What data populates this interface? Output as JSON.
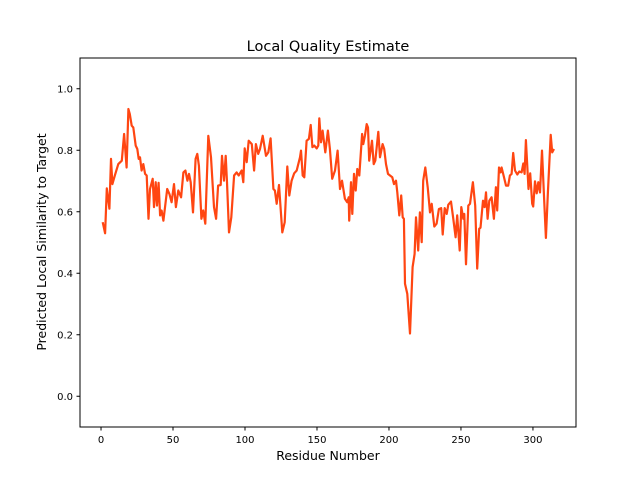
{
  "chart_data": {
    "type": "line",
    "title": "Local Quality Estimate",
    "xlabel": "Residue Number",
    "ylabel": "Predicted Local Similarity to Target",
    "xlim": [
      -14.6,
      329.9
    ],
    "ylim": [
      -0.1,
      1.1
    ],
    "xticks": [
      0,
      50,
      100,
      150,
      200,
      250,
      300
    ],
    "xtick_labels": [
      "0",
      "50",
      "100",
      "150",
      "200",
      "250",
      "300"
    ],
    "yticks": [
      0.0,
      0.2,
      0.4,
      0.6,
      0.8,
      1.0
    ],
    "ytick_labels": [
      "0.0",
      "0.2",
      "0.4",
      "0.6",
      "0.8",
      "1.0"
    ],
    "grid": false,
    "series": [
      {
        "name": "local quality",
        "color": "#ff4612",
        "points": [
          [
            1.2,
            0.566
          ],
          [
            2.8,
            0.53
          ],
          [
            4,
            0.676
          ],
          [
            5.8,
            0.61
          ],
          [
            6.9,
            0.772
          ],
          [
            7.9,
            0.69
          ],
          [
            9.7,
            0.72
          ],
          [
            12,
            0.755
          ],
          [
            14.4,
            0.766
          ],
          [
            16,
            0.853
          ],
          [
            17.8,
            0.744
          ],
          [
            19,
            0.934
          ],
          [
            20,
            0.918
          ],
          [
            21.3,
            0.88
          ],
          [
            22.4,
            0.874
          ],
          [
            24.1,
            0.815
          ],
          [
            25.2,
            0.804
          ],
          [
            26.2,
            0.772
          ],
          [
            27.1,
            0.777
          ],
          [
            28.2,
            0.734
          ],
          [
            29.4,
            0.755
          ],
          [
            30.6,
            0.723
          ],
          [
            31.7,
            0.718
          ],
          [
            33,
            0.577
          ],
          [
            34,
            0.674
          ],
          [
            35.9,
            0.707
          ],
          [
            36.8,
            0.615
          ],
          [
            38,
            0.696
          ],
          [
            38.9,
            0.62
          ],
          [
            40,
            0.694
          ],
          [
            41,
            0.588
          ],
          [
            42.1,
            0.604
          ],
          [
            43.3,
            0.571
          ],
          [
            46,
            0.674
          ],
          [
            47.5,
            0.658
          ],
          [
            49,
            0.631
          ],
          [
            50.7,
            0.69
          ],
          [
            52,
            0.615
          ],
          [
            53.7,
            0.669
          ],
          [
            55.6,
            0.647
          ],
          [
            57.2,
            0.728
          ],
          [
            58.6,
            0.734
          ],
          [
            60,
            0.701
          ],
          [
            61.1,
            0.723
          ],
          [
            62.3,
            0.696
          ],
          [
            63.9,
            0.598
          ],
          [
            65.7,
            0.772
          ],
          [
            66.9,
            0.788
          ],
          [
            68,
            0.75
          ],
          [
            69.7,
            0.577
          ],
          [
            71,
            0.604
          ],
          [
            72.4,
            0.561
          ],
          [
            74.5,
            0.847
          ],
          [
            76.4,
            0.777
          ],
          [
            78.5,
            0.615
          ],
          [
            79.9,
            0.577
          ],
          [
            81.3,
            0.685
          ],
          [
            83.1,
            0.687
          ],
          [
            84,
            0.782
          ],
          [
            85.4,
            0.701
          ],
          [
            86.6,
            0.782
          ],
          [
            87.5,
            0.696
          ],
          [
            88.9,
            0.533
          ],
          [
            90.5,
            0.582
          ],
          [
            92.4,
            0.718
          ],
          [
            94.2,
            0.728
          ],
          [
            95.6,
            0.718
          ],
          [
            97.7,
            0.734
          ],
          [
            98.8,
            0.696
          ],
          [
            99.8,
            0.806
          ],
          [
            101.2,
            0.761
          ],
          [
            102.6,
            0.831
          ],
          [
            104.7,
            0.82
          ],
          [
            106.3,
            0.734
          ],
          [
            107.6,
            0.82
          ],
          [
            109.2,
            0.788
          ],
          [
            110.4,
            0.804
          ],
          [
            112.3,
            0.847
          ],
          [
            114.6,
            0.782
          ],
          [
            116.2,
            0.793
          ],
          [
            117.8,
            0.839
          ],
          [
            119.7,
            0.674
          ],
          [
            120.8,
            0.669
          ],
          [
            122,
            0.626
          ],
          [
            123.6,
            0.687
          ],
          [
            125.9,
            0.533
          ],
          [
            127.6,
            0.566
          ],
          [
            129.4,
            0.747
          ],
          [
            130.8,
            0.653
          ],
          [
            132.4,
            0.701
          ],
          [
            134.2,
            0.725
          ],
          [
            135.9,
            0.734
          ],
          [
            138.2,
            0.777
          ],
          [
            138.9,
            0.799
          ],
          [
            140.1,
            0.718
          ],
          [
            141.2,
            0.712
          ],
          [
            142.8,
            0.831
          ],
          [
            144.4,
            0.837
          ],
          [
            145.6,
            0.882
          ],
          [
            146.8,
            0.81
          ],
          [
            148.1,
            0.815
          ],
          [
            149.8,
            0.806
          ],
          [
            150.9,
            0.815
          ],
          [
            151.6,
            0.904
          ],
          [
            152.8,
            0.826
          ],
          [
            153.9,
            0.864
          ],
          [
            155.8,
            0.793
          ],
          [
            157.6,
            0.864
          ],
          [
            159,
            0.804
          ],
          [
            160.6,
            0.707
          ],
          [
            162.5,
            0.734
          ],
          [
            164.3,
            0.799
          ],
          [
            166,
            0.674
          ],
          [
            167.4,
            0.701
          ],
          [
            169.4,
            0.642
          ],
          [
            171,
            0.631
          ],
          [
            172,
            0.647
          ],
          [
            172.4,
            0.571
          ],
          [
            173.6,
            0.696
          ],
          [
            174.5,
            0.593
          ],
          [
            175.7,
            0.723
          ],
          [
            176.9,
            0.669
          ],
          [
            178,
            0.739
          ],
          [
            179.4,
            0.718
          ],
          [
            181.3,
            0.853
          ],
          [
            182.2,
            0.82
          ],
          [
            183.3,
            0.847
          ],
          [
            184.5,
            0.885
          ],
          [
            185.4,
            0.874
          ],
          [
            186.3,
            0.766
          ],
          [
            188.2,
            0.831
          ],
          [
            189.4,
            0.755
          ],
          [
            190.5,
            0.766
          ],
          [
            192.6,
            0.86
          ],
          [
            193.8,
            0.777
          ],
          [
            195.6,
            0.82
          ],
          [
            196.7,
            0.804
          ],
          [
            197.9,
            0.755
          ],
          [
            199.3,
            0.723
          ],
          [
            200.7,
            0.718
          ],
          [
            202.3,
            0.712
          ],
          [
            203.5,
            0.69
          ],
          [
            204.9,
            0.701
          ],
          [
            205.8,
            0.663
          ],
          [
            207.2,
            0.588
          ],
          [
            208.5,
            0.653
          ],
          [
            209.5,
            0.582
          ],
          [
            210.4,
            0.577
          ],
          [
            211.1,
            0.366
          ],
          [
            212.7,
            0.333
          ],
          [
            214.6,
            0.204
          ],
          [
            216.4,
            0.42
          ],
          [
            217.8,
            0.463
          ],
          [
            218.8,
            0.582
          ],
          [
            220.3,
            0.474
          ],
          [
            221.5,
            0.598
          ],
          [
            222.7,
            0.501
          ],
          [
            223.8,
            0.701
          ],
          [
            225.2,
            0.744
          ],
          [
            226.9,
            0.68
          ],
          [
            228.5,
            0.598
          ],
          [
            229.7,
            0.626
          ],
          [
            231.5,
            0.552
          ],
          [
            233.1,
            0.561
          ],
          [
            234.7,
            0.609
          ],
          [
            236.3,
            0.612
          ],
          [
            237.3,
            0.526
          ],
          [
            238.7,
            0.612
          ],
          [
            240.1,
            0.593
          ],
          [
            241.2,
            0.623
          ],
          [
            243.1,
            0.633
          ],
          [
            244.7,
            0.577
          ],
          [
            246.3,
            0.517
          ],
          [
            247.4,
            0.588
          ],
          [
            249.1,
            0.474
          ],
          [
            250.2,
            0.615
          ],
          [
            251.6,
            0.577
          ],
          [
            252.3,
            0.593
          ],
          [
            253.5,
            0.429
          ],
          [
            255.1,
            0.62
          ],
          [
            256.3,
            0.626
          ],
          [
            258.3,
            0.696
          ],
          [
            259.9,
            0.62
          ],
          [
            261.3,
            0.415
          ],
          [
            262.7,
            0.545
          ],
          [
            263.6,
            0.548
          ],
          [
            265.3,
            0.636
          ],
          [
            266.4,
            0.615
          ],
          [
            267.4,
            0.663
          ],
          [
            268.5,
            0.577
          ],
          [
            269.7,
            0.636
          ],
          [
            271.3,
            0.647
          ],
          [
            272.9,
            0.577
          ],
          [
            274.3,
            0.68
          ],
          [
            275.2,
            0.604
          ],
          [
            276.4,
            0.744
          ],
          [
            277.5,
            0.728
          ],
          [
            278.2,
            0.744
          ],
          [
            279.9,
            0.712
          ],
          [
            281.3,
            0.685
          ],
          [
            282.8,
            0.685
          ],
          [
            284,
            0.718
          ],
          [
            285.2,
            0.723
          ],
          [
            286.3,
            0.791
          ],
          [
            287.5,
            0.734
          ],
          [
            289.1,
            0.721
          ],
          [
            290.5,
            0.731
          ],
          [
            292.1,
            0.728
          ],
          [
            293.3,
            0.757
          ],
          [
            294.2,
            0.723
          ],
          [
            295.1,
            0.833
          ],
          [
            296.9,
            0.674
          ],
          [
            298.1,
            0.725
          ],
          [
            299.5,
            0.626
          ],
          [
            300.2,
            0.617
          ],
          [
            301.4,
            0.699
          ],
          [
            302.6,
            0.66
          ],
          [
            303.7,
            0.696
          ],
          [
            304.9,
            0.663
          ],
          [
            306.3,
            0.799
          ],
          [
            307.6,
            0.658
          ],
          [
            309,
            0.515
          ],
          [
            310.4,
            0.663
          ],
          [
            312.3,
            0.85
          ],
          [
            313.4,
            0.793
          ],
          [
            314.6,
            0.804
          ]
        ]
      }
    ]
  }
}
